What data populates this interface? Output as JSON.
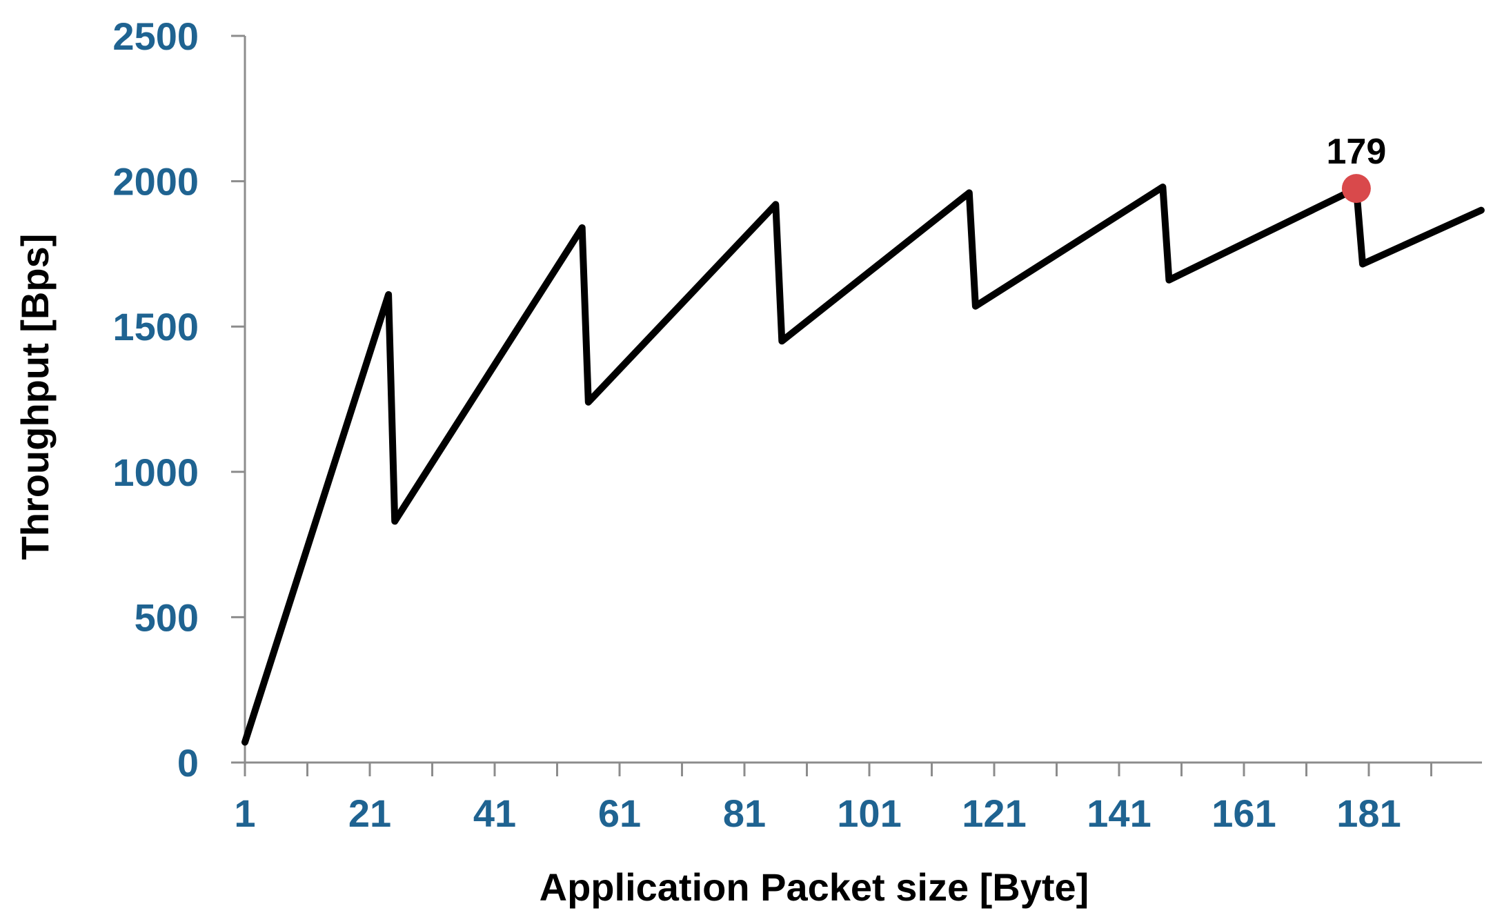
{
  "chart_data": {
    "type": "line",
    "xlabel": "Application Packet size [Byte]",
    "ylabel": "Throughput [Bps]",
    "x_ticks": [
      "1",
      "21",
      "41",
      "61",
      "81",
      "101",
      "121",
      "141",
      "161",
      "181"
    ],
    "y_ticks": [
      "0",
      "500",
      "1000",
      "1500",
      "2000",
      "2500"
    ],
    "xlim": [
      1,
      199
    ],
    "ylim": [
      0,
      2500
    ],
    "grid": false,
    "colors": {
      "line": "#000000",
      "tick_text": "#1f6391",
      "axis": "#8c8c8c",
      "marker": "#d9494b"
    },
    "series": [
      {
        "x": [
          1,
          24,
          25,
          55,
          56,
          86,
          87,
          117,
          118,
          148,
          149,
          179,
          180,
          199
        ],
        "y": [
          70,
          1610,
          830,
          1840,
          1240,
          1920,
          1450,
          1960,
          1570,
          1980,
          1660,
          1975,
          1715,
          1900
        ]
      }
    ],
    "annotations": [
      {
        "x": 179,
        "y": 1975,
        "text": "179"
      }
    ]
  }
}
